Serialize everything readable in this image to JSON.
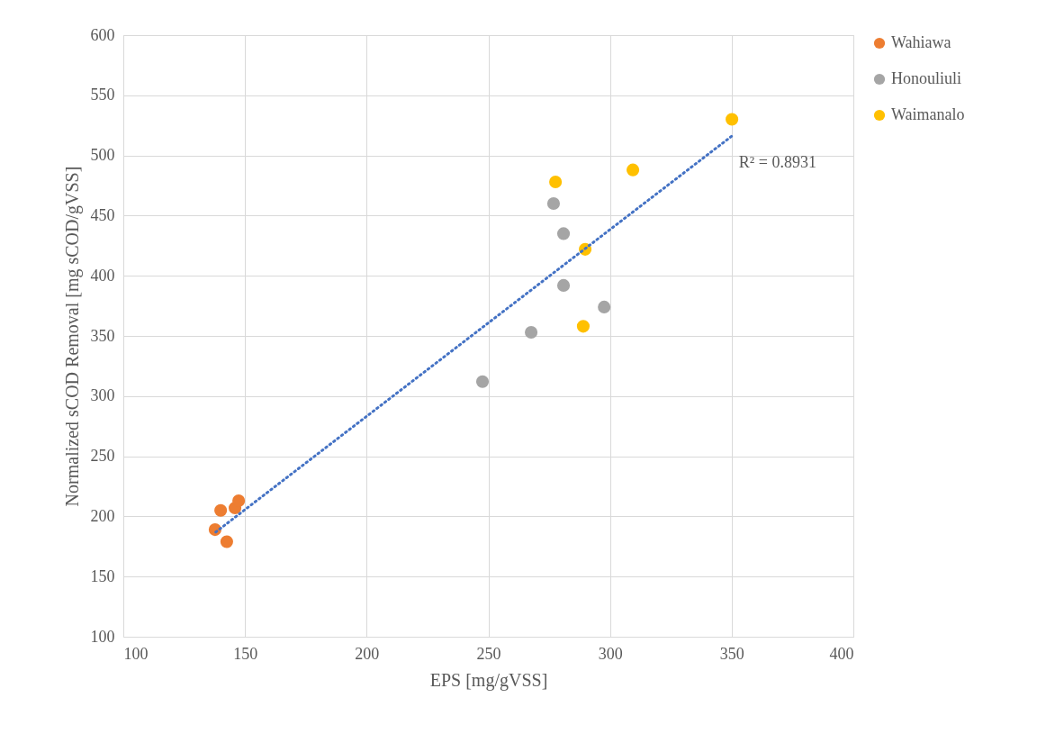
{
  "chart_data": {
    "type": "scatter",
    "xlabel": "EPS [mg/gVSS]",
    "ylabel": "Normalized sCOD Removal [mg sCOD/gVSS]",
    "xlim": [
      100,
      400
    ],
    "xticks": [
      100,
      150,
      200,
      250,
      300,
      350,
      400
    ],
    "ylim": [
      100,
      600
    ],
    "yticks": [
      100,
      150,
      200,
      250,
      300,
      350,
      400,
      450,
      500,
      550,
      600
    ],
    "grid": true,
    "legend": "right",
    "marker": "circle",
    "series": [
      {
        "name": "Wahiawa",
        "color": "#ed7d31",
        "x": [
          137.7,
          140,
          142.5,
          145.9,
          147.4
        ],
        "values": [
          189,
          205,
          179,
          207,
          213
        ]
      },
      {
        "name": "Honouliuli",
        "color": "#a5a5a5",
        "x": [
          247.6,
          267.6,
          276.8,
          280.9,
          280.9,
          297.6
        ],
        "values": [
          312,
          353,
          460,
          435,
          392,
          374
        ]
      },
      {
        "name": "Waimanalo",
        "color": "#ffc000",
        "x": [
          277.6,
          289.8,
          289,
          309.4,
          350.1
        ],
        "values": [
          478,
          422,
          358,
          488,
          530
        ]
      },
      {
        "type": "line",
        "color": "#4472c4",
        "line_style": "dotted",
        "marker": "none",
        "x": [
          138,
          350
        ],
        "values": [
          187,
          516
        ]
      }
    ],
    "annotations": [
      "R² = 0.8931"
    ]
  }
}
